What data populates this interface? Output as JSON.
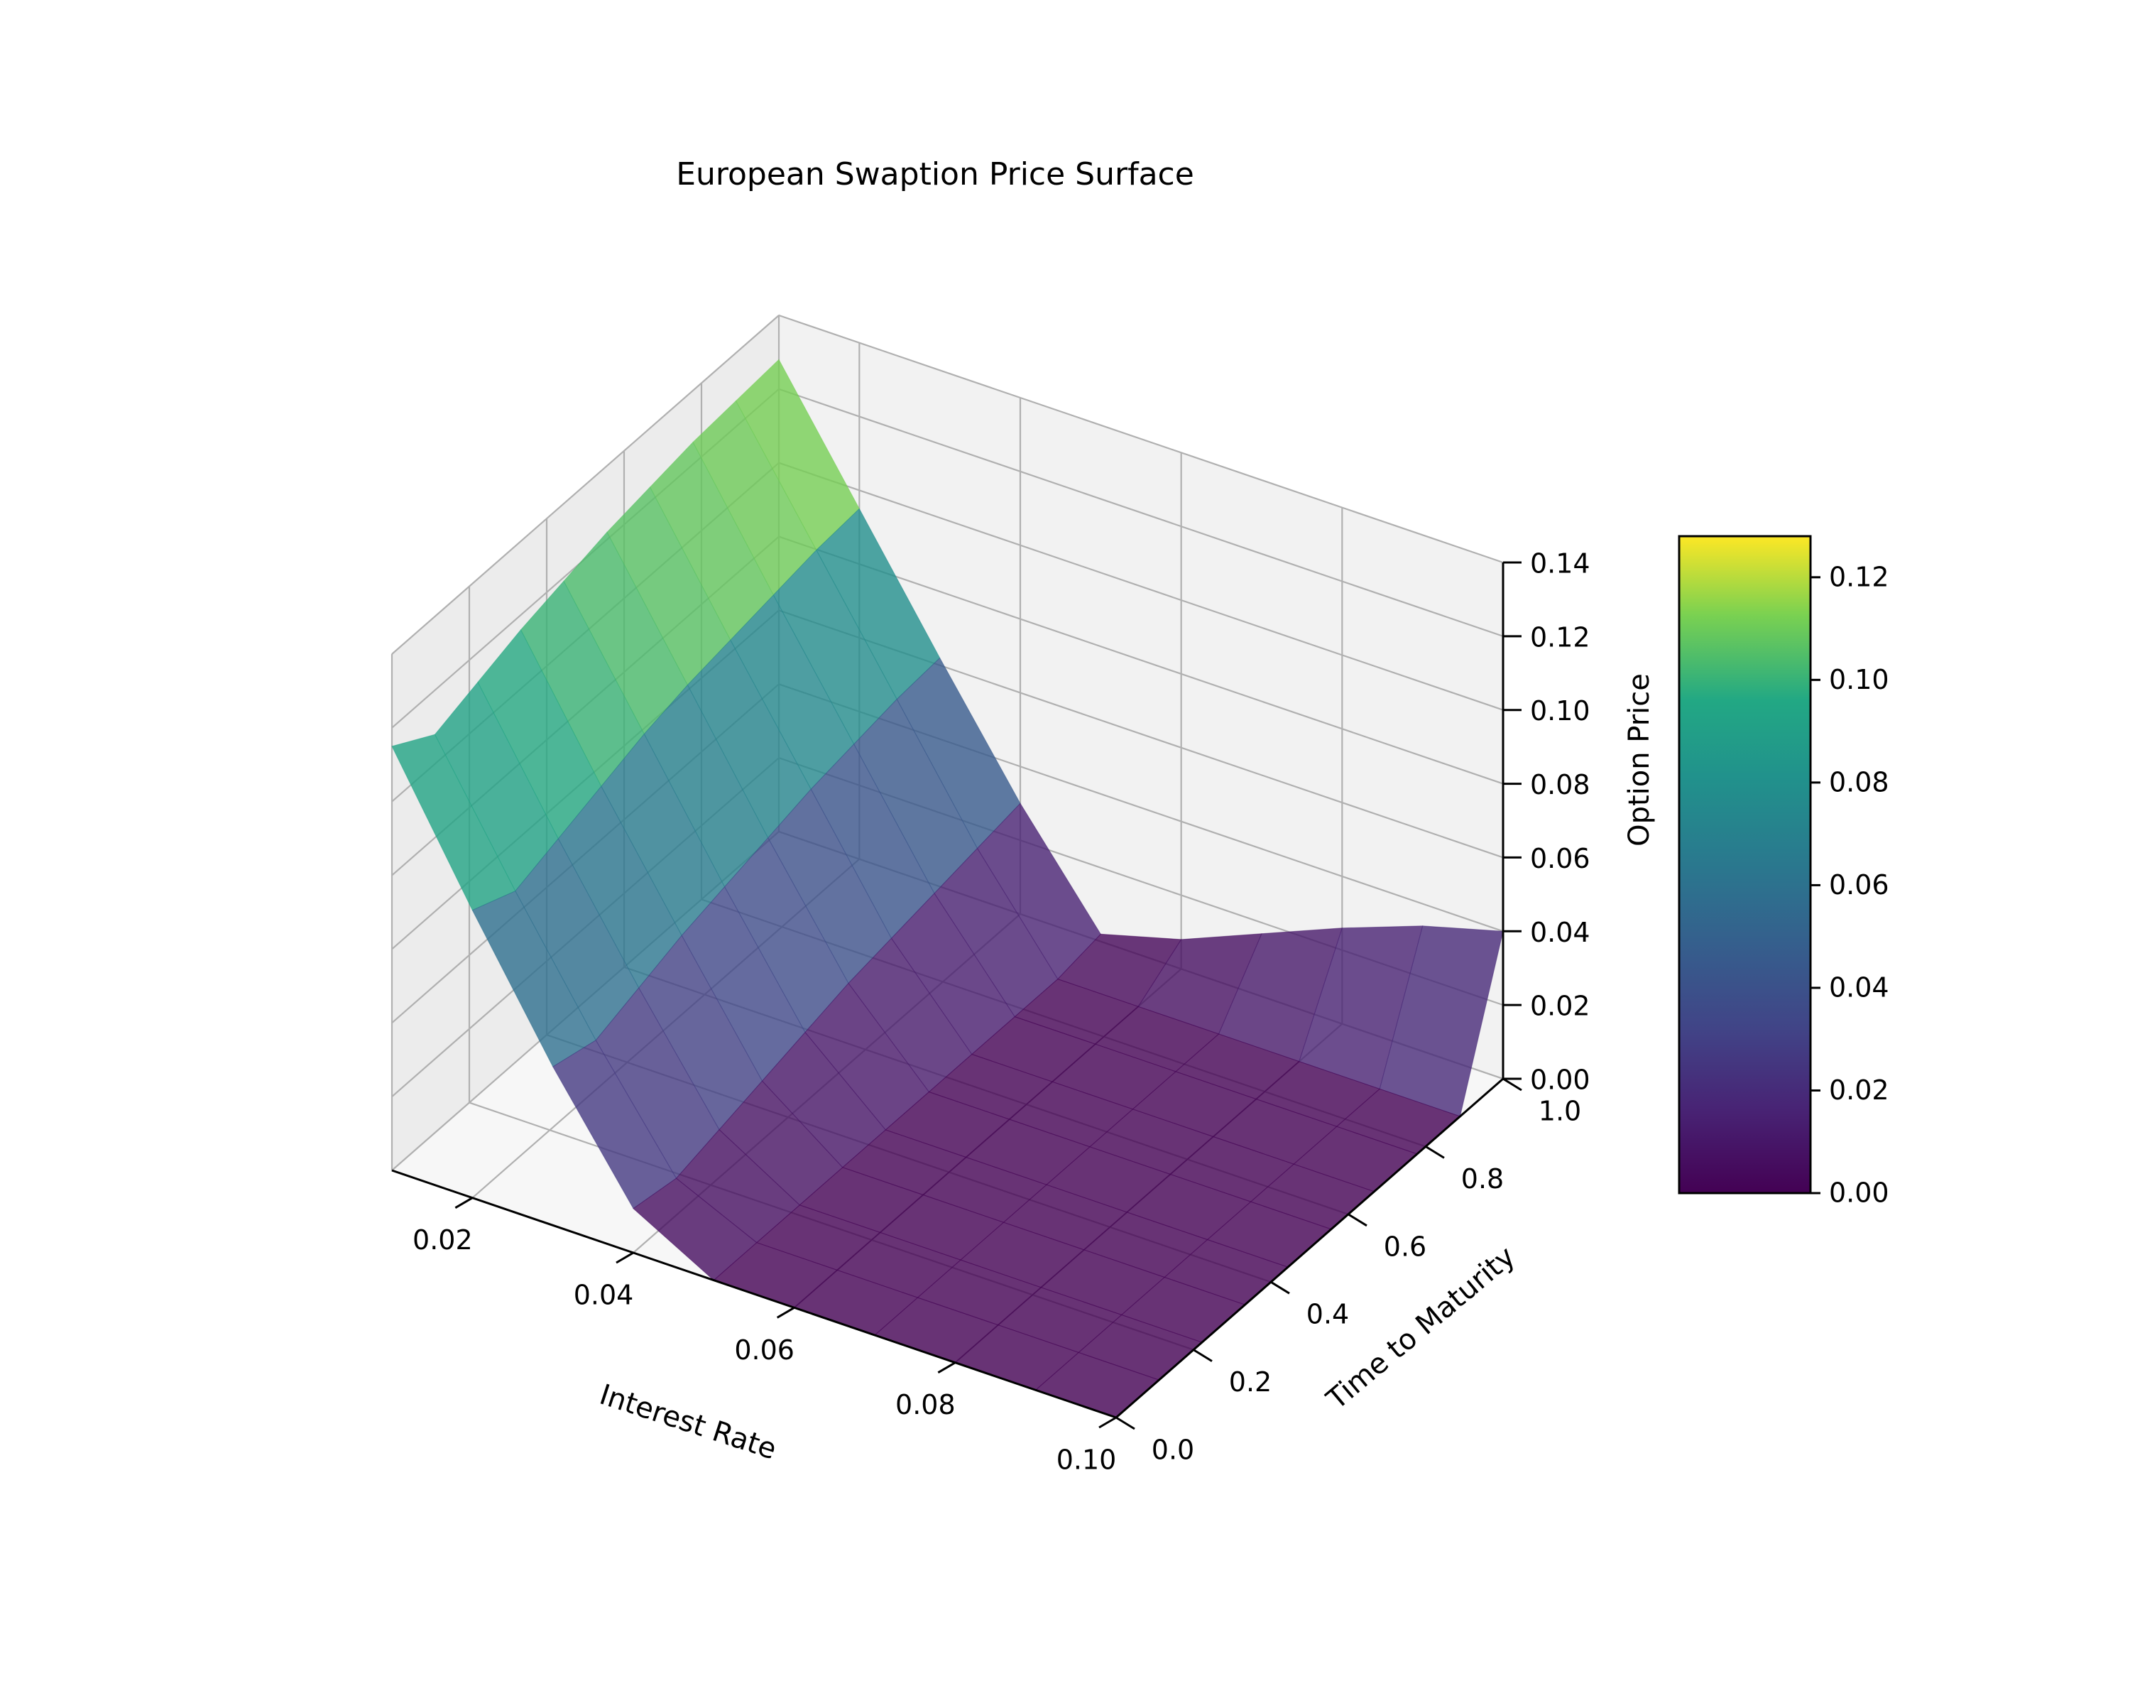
{
  "chart_data": {
    "type": "surface",
    "title": "European Swaption Price Surface",
    "xlabel": "Interest Rate",
    "ylabel": "Time to Maturity",
    "zlabel": "Option Price",
    "xlim": [
      0.01,
      0.1
    ],
    "ylim": [
      0.0,
      1.0
    ],
    "zlim": [
      0.0,
      0.14
    ],
    "x_ticks": [
      "0.02",
      "0.04",
      "0.06",
      "0.08",
      "0.10"
    ],
    "y_ticks": [
      "0.0",
      "0.2",
      "0.4",
      "0.6",
      "0.8",
      "1.0"
    ],
    "z_ticks": [
      "0.00",
      "0.02",
      "0.04",
      "0.06",
      "0.08",
      "0.10",
      "0.12",
      "0.14"
    ],
    "grid": true,
    "colormap": "viridis",
    "surface_alpha": 0.8,
    "x": [
      0.01,
      0.02,
      0.03,
      0.04,
      0.05,
      0.06,
      0.07,
      0.08,
      0.09,
      0.1
    ],
    "y": [
      0.0,
      0.111,
      0.222,
      0.333,
      0.444,
      0.556,
      0.667,
      0.778,
      0.889,
      1.0
    ],
    "z_description_free": true,
    "z": [
      [
        0.115,
        0.108,
        0.112,
        0.116,
        0.119,
        0.122,
        0.124,
        0.126,
        0.127,
        0.128
      ],
      [
        0.078,
        0.073,
        0.077,
        0.081,
        0.085,
        0.088,
        0.09,
        0.092,
        0.094,
        0.095
      ],
      [
        0.043,
        0.04,
        0.044,
        0.048,
        0.051,
        0.054,
        0.057,
        0.059,
        0.061,
        0.062
      ],
      [
        0.012,
        0.01,
        0.013,
        0.016,
        0.019,
        0.022,
        0.024,
        0.026,
        0.028,
        0.03
      ],
      [
        0.0,
        0.0,
        0.0,
        0.0,
        0.0,
        0.0,
        0.0,
        0.0,
        0.0,
        0.002
      ],
      [
        0.0,
        0.0,
        0.0,
        0.0,
        0.0,
        0.0,
        0.0,
        0.0,
        0.0,
        0.008
      ],
      [
        0.0,
        0.0,
        0.0,
        0.0,
        0.0,
        0.0,
        0.0,
        0.0,
        0.0,
        0.017
      ],
      [
        0.0,
        0.0,
        0.0,
        0.0,
        0.0,
        0.0,
        0.0,
        0.0,
        0.0,
        0.026
      ],
      [
        0.0,
        0.0,
        0.0,
        0.0,
        0.0,
        0.0,
        0.0,
        0.0,
        0.0,
        0.034
      ],
      [
        0.0,
        0.0,
        0.0,
        0.0,
        0.0,
        0.0,
        0.0,
        0.0,
        0.0,
        0.04
      ]
    ],
    "colorbar": {
      "range": [
        0.0,
        0.128
      ],
      "ticks": [
        "0.00",
        "0.02",
        "0.04",
        "0.06",
        "0.08",
        "0.10",
        "0.12"
      ],
      "tick_values": [
        0.0,
        0.02,
        0.04,
        0.06,
        0.08,
        0.1,
        0.12
      ]
    }
  }
}
